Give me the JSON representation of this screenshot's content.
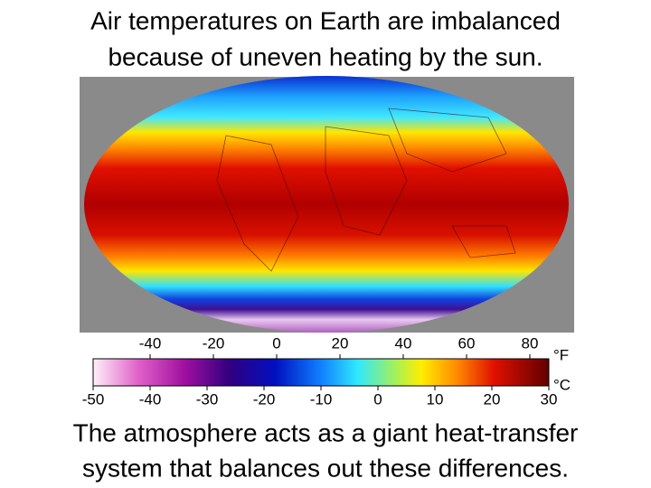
{
  "title": [
    "Air temperatures on Earth are imbalanced",
    "because of uneven heating by the sun."
  ],
  "colorbar": {
    "fahrenheit": {
      "unit": "°F",
      "ticks": [
        -40,
        -20,
        0,
        20,
        40,
        60,
        80
      ]
    },
    "celsius": {
      "unit": "°C",
      "ticks": [
        -50,
        -40,
        -30,
        -20,
        -10,
        0,
        10,
        20,
        30
      ]
    }
  },
  "caption": [
    "The atmosphere acts as a giant heat-transfer",
    "system that balances out these differences."
  ]
}
